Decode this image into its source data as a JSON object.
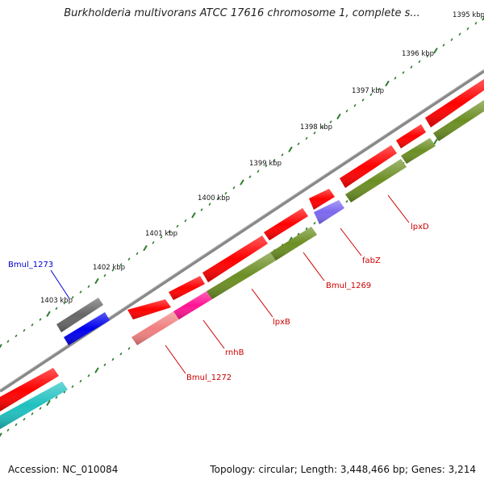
{
  "title": "Burkholderia multivorans ATCC 17616 chromosome 1, complete s...",
  "footer": {
    "accession": "Accession: NC_010084",
    "summary": "Topology: circular; Length: 3,448,466 bp; Genes: 3,214"
  },
  "scale_labels": [
    "1395 kbp",
    "1396 kbp",
    "1397 kbp",
    "1398 kbp",
    "1399 kbp",
    "1400 kbp",
    "1401 kbp",
    "1402 kbp",
    "1403 kbp"
  ],
  "gene_labels": {
    "bmul_1273": "Bmul_1273",
    "lpxd": "lpxD",
    "fabz": "fabZ",
    "bmul_1269": "Bmul_1269",
    "lpxb": "lpxB",
    "rnhb": "rnhB",
    "bmul_1272": "Bmul_1272"
  },
  "colors": {
    "label_red": "#cc0000",
    "label_blue": "#0000cc",
    "backbone": "#888888",
    "tick_green": "#2e7d2e",
    "gene_red": "#ff0000",
    "gene_olive": "#6b8e23",
    "gene_pink": "#f08080",
    "gene_magenta": "#ff1493",
    "gene_purple": "#7b68ee",
    "gene_gray": "#666666",
    "gene_blue": "#0000ee",
    "gene_cyan": "#20c0c0"
  }
}
